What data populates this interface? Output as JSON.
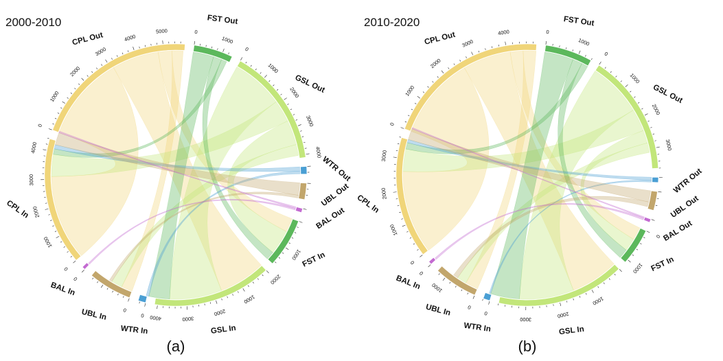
{
  "figure": {
    "panels": [
      {
        "title": "2000-2010",
        "label": "(a)"
      },
      {
        "title": "2010-2020",
        "label": "(b)"
      }
    ]
  },
  "chart_data": [
    {
      "type": "chord",
      "title": "2000-2010",
      "panel_label": "(a)",
      "groups": [
        {
          "name": "FST Out",
          "total": 1350,
          "color": "#5cb85c",
          "tick_step": 1000,
          "ticks_shown": [
            0,
            1000
          ]
        },
        {
          "name": "GSL Out",
          "total": 4100,
          "color": "#c2e67a",
          "tick_step": 1000,
          "ticks_shown": [
            0,
            1000,
            2000,
            3000,
            4000
          ]
        },
        {
          "name": "WTR Out",
          "total": 260,
          "color": "#4a9fd4",
          "tick_step": 1000,
          "ticks_shown": []
        },
        {
          "name": "UBL Out",
          "total": 560,
          "color": "#c2a66c",
          "tick_step": 1000,
          "ticks_shown": []
        },
        {
          "name": "BAL Out",
          "total": 140,
          "color": "#c36ad1",
          "tick_step": 1000,
          "ticks_shown": []
        },
        {
          "name": "FST In",
          "total": 1700,
          "color": "#5cb85c",
          "tick_step": 1000,
          "ticks_shown": [
            1000,
            2000
          ]
        },
        {
          "name": "GSL In",
          "total": 4100,
          "color": "#c2e67a",
          "tick_step": 1000,
          "ticks_shown": [
            1000,
            2000,
            3000,
            4000
          ]
        },
        {
          "name": "WTR In",
          "total": 260,
          "color": "#4a9fd4",
          "tick_step": 1000,
          "ticks_shown": [
            0
          ]
        },
        {
          "name": "UBL In",
          "total": 1500,
          "color": "#c2a66c",
          "tick_step": 1000,
          "ticks_shown": [
            0
          ]
        },
        {
          "name": "BAL In",
          "total": 110,
          "color": "#c36ad1",
          "tick_step": 1000,
          "ticks_shown": [
            0
          ]
        },
        {
          "name": "CPL In",
          "total": 4400,
          "color": "#f0d579",
          "tick_step": 1000,
          "ticks_shown": [
            0,
            1000,
            2000,
            3000,
            4000
          ]
        },
        {
          "name": "CPL Out",
          "total": 5750,
          "color": "#f0d579",
          "tick_step": 1000,
          "ticks_shown": [
            0,
            1000,
            2000,
            3000,
            4000,
            5000
          ]
        }
      ],
      "flows": [
        {
          "from": "CPL Out",
          "to": "CPL In",
          "value": 3100
        },
        {
          "from": "CPL Out",
          "to": "GSL In",
          "value": 1700
        },
        {
          "from": "CPL Out",
          "to": "FST In",
          "value": 500
        },
        {
          "from": "CPL Out",
          "to": "UBL In",
          "value": 400
        },
        {
          "from": "GSL Out",
          "to": "GSL In",
          "value": 1900
        },
        {
          "from": "GSL Out",
          "to": "CPL In",
          "value": 800
        },
        {
          "from": "GSL Out",
          "to": "FST In",
          "value": 900
        },
        {
          "from": "GSL Out",
          "to": "UBL In",
          "value": 400
        },
        {
          "from": "FST Out",
          "to": "GSL In",
          "value": 750
        },
        {
          "from": "FST Out",
          "to": "FST In",
          "value": 300
        },
        {
          "from": "FST Out",
          "to": "CPL In",
          "value": 200
        },
        {
          "from": "WTR Out",
          "to": "CPL In",
          "value": 150
        },
        {
          "from": "WTR Out",
          "to": "GSL In",
          "value": 100
        },
        {
          "from": "UBL Out",
          "to": "CPL In",
          "value": 450
        },
        {
          "from": "UBL Out",
          "to": "UBL In",
          "value": 100
        },
        {
          "from": "BAL Out",
          "to": "CPL In",
          "value": 60
        },
        {
          "from": "BAL Out",
          "to": "BAL In",
          "value": 60
        }
      ]
    },
    {
      "type": "chord",
      "title": "2010-2020",
      "panel_label": "(b)",
      "groups": [
        {
          "name": "FST Out",
          "total": 1400,
          "color": "#5cb85c",
          "tick_step": 1000,
          "ticks_shown": [
            0,
            1000
          ]
        },
        {
          "name": "GSL Out",
          "total": 3600,
          "color": "#c2e67a",
          "tick_step": 1000,
          "ticks_shown": [
            0,
            1000,
            2000,
            3000
          ]
        },
        {
          "name": "WTR Out",
          "total": 150,
          "color": "#4a9fd4",
          "tick_step": 1000,
          "ticks_shown": []
        },
        {
          "name": "UBL Out",
          "total": 560,
          "color": "#c2a66c",
          "tick_step": 1000,
          "ticks_shown": []
        },
        {
          "name": "BAL Out",
          "total": 100,
          "color": "#c36ad1",
          "tick_step": 1000,
          "ticks_shown": []
        },
        {
          "name": "FST In",
          "total": 1100,
          "color": "#5cb85c",
          "tick_step": 1000,
          "ticks_shown": [
            0,
            1000
          ]
        },
        {
          "name": "GSL In",
          "total": 3800,
          "color": "#c2e67a",
          "tick_step": 1000,
          "ticks_shown": [
            1000,
            2000,
            3000
          ]
        },
        {
          "name": "WTR In",
          "total": 200,
          "color": "#4a9fd4",
          "tick_step": 1000,
          "ticks_shown": [
            0
          ]
        },
        {
          "name": "UBL In",
          "total": 1300,
          "color": "#c2a66c",
          "tick_step": 1000,
          "ticks_shown": [
            0,
            1000
          ]
        },
        {
          "name": "BAL In",
          "total": 100,
          "color": "#c36ad1",
          "tick_step": 1000,
          "ticks_shown": [
            0
          ]
        },
        {
          "name": "CPL In",
          "total": 3600,
          "color": "#f0d579",
          "tick_step": 1000,
          "ticks_shown": [
            0,
            1000,
            2000,
            3000
          ]
        },
        {
          "name": "CPL Out",
          "total": 4900,
          "color": "#f0d579",
          "tick_step": 1000,
          "ticks_shown": [
            0,
            1000,
            2000,
            3000,
            4000
          ]
        }
      ],
      "flows": [
        {
          "from": "CPL Out",
          "to": "CPL In",
          "value": 2600
        },
        {
          "from": "CPL Out",
          "to": "GSL In",
          "value": 1500
        },
        {
          "from": "CPL Out",
          "to": "FST In",
          "value": 400
        },
        {
          "from": "CPL Out",
          "to": "UBL In",
          "value": 400
        },
        {
          "from": "GSL Out",
          "to": "GSL In",
          "value": 1700
        },
        {
          "from": "GSL Out",
          "to": "CPL In",
          "value": 700
        },
        {
          "from": "GSL Out",
          "to": "FST In",
          "value": 400
        },
        {
          "from": "GSL Out",
          "to": "UBL In",
          "value": 300
        },
        {
          "from": "FST Out",
          "to": "GSL In",
          "value": 900
        },
        {
          "from": "FST Out",
          "to": "FST In",
          "value": 300
        },
        {
          "from": "FST Out",
          "to": "CPL In",
          "value": 200
        },
        {
          "from": "WTR Out",
          "to": "CPL In",
          "value": 100
        },
        {
          "from": "WTR Out",
          "to": "GSL In",
          "value": 50
        },
        {
          "from": "UBL Out",
          "to": "CPL In",
          "value": 350
        },
        {
          "from": "UBL Out",
          "to": "UBL In",
          "value": 150
        },
        {
          "from": "BAL Out",
          "to": "CPL In",
          "value": 40
        },
        {
          "from": "BAL Out",
          "to": "BAL In",
          "value": 60
        }
      ]
    }
  ]
}
